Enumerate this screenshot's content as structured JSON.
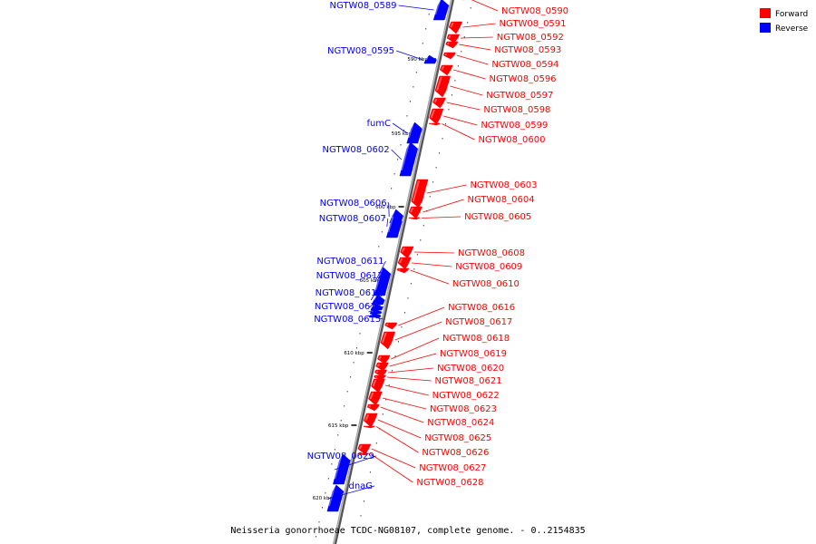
{
  "title": "Neisseria gonorrhoeae TCDC-NG08107, complete genome. - 0..2154835",
  "legend": [
    {
      "label": "Forward",
      "color": "#ff0000"
    },
    {
      "label": "Reverse",
      "color": "#0000ff"
    }
  ],
  "colors": {
    "forward": "#ff0000",
    "reverse": "#0000ff",
    "backbone": "#808080"
  },
  "kbp_ticks": [
    "590 kbp",
    "595 kbp",
    "600 kbp",
    "605 kbp",
    "610 kbp",
    "615 kbp",
    "620 kbp"
  ],
  "forward_genes": [
    "NGTW08_0590",
    "NGTW08_0591",
    "NGTW08_0592",
    "NGTW08_0593",
    "NGTW08_0594",
    "NGTW08_0596",
    "NGTW08_0597",
    "NGTW08_0598",
    "NGTW08_0599",
    "NGTW08_0600",
    "NGTW08_0603",
    "NGTW08_0604",
    "NGTW08_0605",
    "NGTW08_0608",
    "NGTW08_0609",
    "NGTW08_0610",
    "NGTW08_0616",
    "NGTW08_0617",
    "NGTW08_0618",
    "NGTW08_0619",
    "NGTW08_0620",
    "NGTW08_0621",
    "NGTW08_0622",
    "NGTW08_0623",
    "NGTW08_0624",
    "NGTW08_0625",
    "NGTW08_0626",
    "NGTW08_0627",
    "NGTW08_0628"
  ],
  "reverse_genes": [
    "NGTW08_0589",
    "NGTW08_0595",
    "fumC",
    "NGTW08_0602",
    "NGTW08_0606",
    "NGTW08_0607",
    "NGTW08_0611",
    "NGTW08_0612",
    "NGTW08_0613",
    "NGTW08_0614",
    "NGTW08_0615",
    "NGTW08_0629",
    "dnaG"
  ]
}
